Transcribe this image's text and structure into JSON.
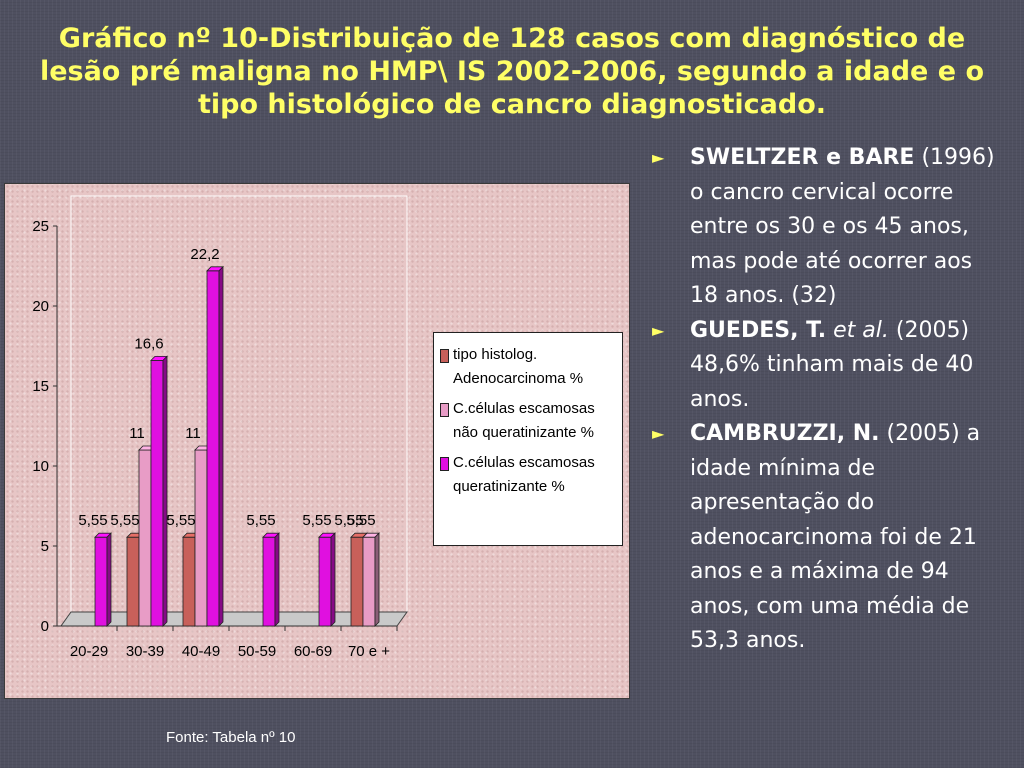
{
  "title": "Gráfico nº 10-Distribuição de 128 casos com diagnóstico de lesão pré maligna no HMP\\ IS 2002-2006, segundo a idade e o tipo histológico de cancro diagnosticado.",
  "chart_data": {
    "type": "bar",
    "categories": [
      "20-29",
      "30-39",
      "40-49",
      "50-59",
      "60-69",
      "70 e +"
    ],
    "series": [
      {
        "name": "tipo histolog. Adenocarcinoma %",
        "color": "#c8605a",
        "values": [
          0,
          5.55,
          5.55,
          0,
          0,
          5.55
        ]
      },
      {
        "name": "C.células escamosas não queratinizante %",
        "color": "#e89cc6",
        "values": [
          0,
          11,
          11,
          0,
          0,
          5.55
        ]
      },
      {
        "name": "C.células escamosas queratinizante %",
        "color": "#e010e0",
        "values": [
          5.55,
          16.6,
          22.2,
          5.55,
          5.55,
          0
        ]
      }
    ],
    "data_labels": [
      {
        "series": 0,
        "category": 1,
        "text": "5,55"
      },
      {
        "series": 0,
        "category": 2,
        "text": "5,55"
      },
      {
        "series": 0,
        "category": 5,
        "text": "5,55"
      },
      {
        "series": 1,
        "category": 1,
        "text": "11"
      },
      {
        "series": 1,
        "category": 2,
        "text": "11"
      },
      {
        "series": 1,
        "category": 5,
        "text": "5,55"
      },
      {
        "series": 2,
        "category": 0,
        "text": "5,55"
      },
      {
        "series": 2,
        "category": 1,
        "text": "16,6"
      },
      {
        "series": 2,
        "category": 2,
        "text": "22,2"
      },
      {
        "series": 2,
        "category": 3,
        "text": "5,55"
      },
      {
        "series": 2,
        "category": 4,
        "text": "5,55"
      }
    ],
    "y_ticks": [
      "0",
      "5",
      "10",
      "15",
      "20",
      "25"
    ],
    "ylim": [
      0,
      25
    ],
    "grid": false,
    "legend": "right",
    "style": "3d"
  },
  "caption": "Fonte: Tabela nº 10",
  "bullets": [
    {
      "author": "SWELTZER e BARE",
      "text": "(1996) o cancro cervical ocorre entre os 30 e os 45 anos, mas pode até ocorrer aos 18 anos. (32)"
    },
    {
      "author": "GUEDES, T.",
      "etal": "et al.",
      "text": "(2005) 48,6% tinham mais de 40 anos."
    },
    {
      "author": "CAMBRUZZI, N.",
      "text": "(2005) a  idade mínima de apresentação do adenocarcinoma foi de 21 anos e a máxima de 94 anos, com uma média de 53,3 anos."
    }
  ],
  "colors": {
    "title": "#ffff66",
    "bullet_arrow": "#ffff66",
    "background": "#4f5060",
    "chart_panel": "#e7c6c6"
  }
}
